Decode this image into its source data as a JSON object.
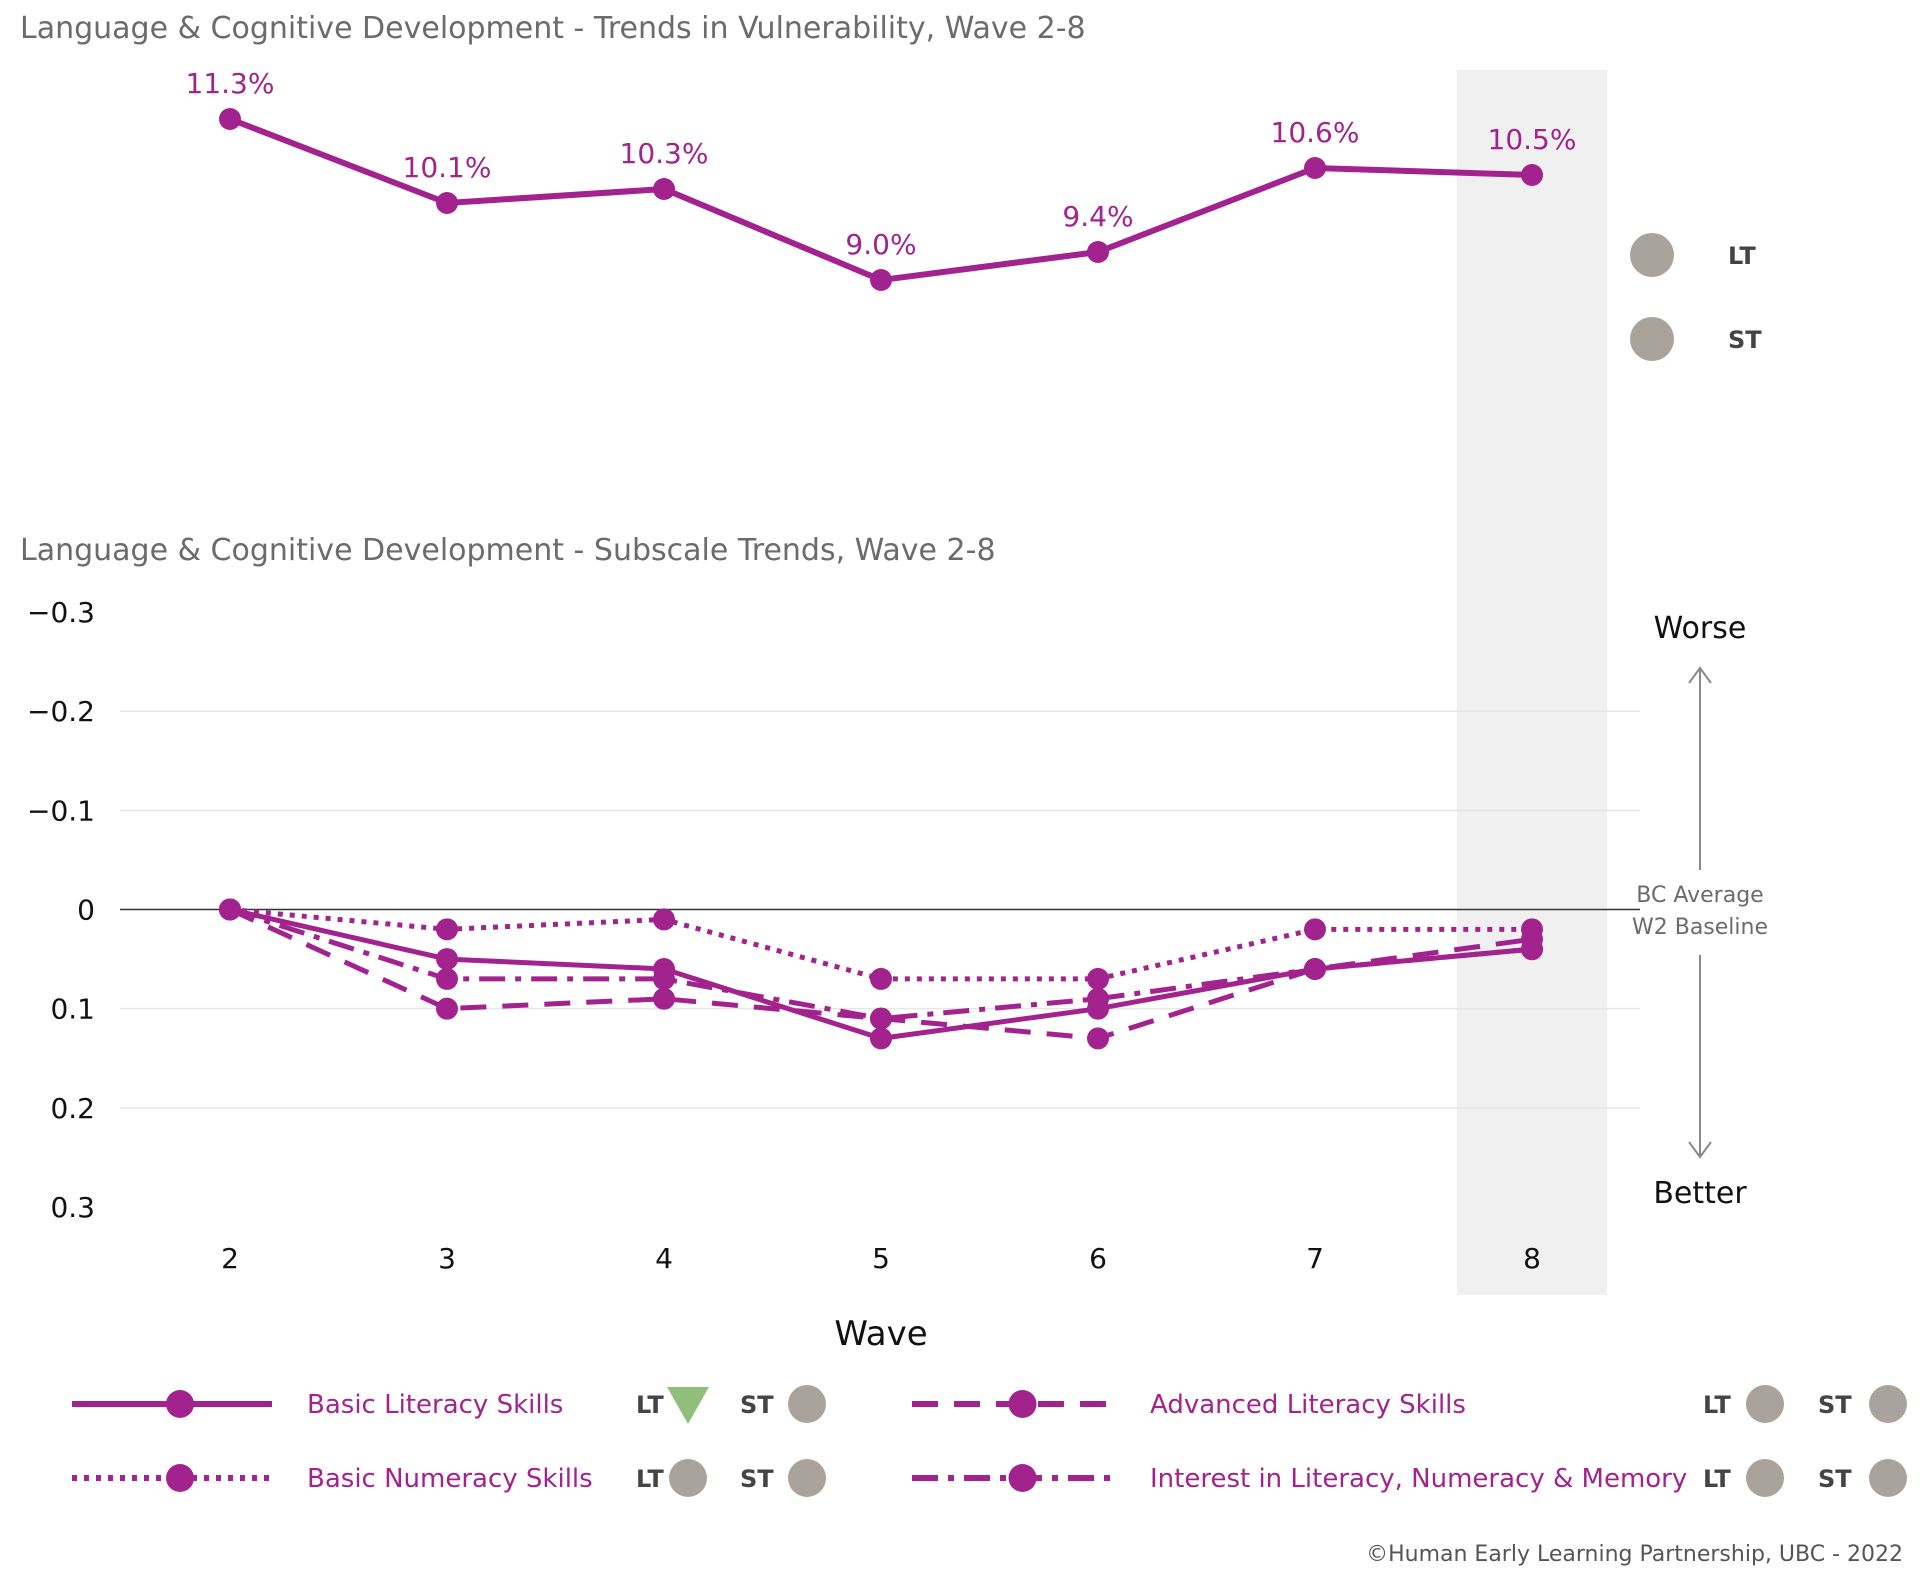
{
  "colors": {
    "series": "#a3238e",
    "highlight_band": "#f0f0f0",
    "indicator_grey": "#a9a39b",
    "indicator_green": "#8fbf7a",
    "worse": "#a81b1b",
    "better": "#8dc63f",
    "title": "#6b6b6b"
  },
  "credit": "©Human Early Learning Partnership, UBC - 2022",
  "chart_data": [
    {
      "type": "line",
      "title": "Language & Cognitive Development - Trends in Vulnerability, Wave 2-8",
      "x": [
        2,
        3,
        4,
        5,
        6,
        7,
        8
      ],
      "values": [
        11.3,
        10.1,
        10.3,
        9.0,
        9.4,
        10.6,
        10.5
      ],
      "data_labels": [
        "11.3%",
        "10.1%",
        "10.3%",
        "9.0%",
        "9.4%",
        "10.6%",
        "10.5%"
      ],
      "ylim": [
        7.0,
        12.0
      ],
      "highlight_x": 8,
      "indicators": [
        {
          "code": "LT",
          "symbol": "circle",
          "color": "#a9a39b"
        },
        {
          "code": "ST",
          "symbol": "circle",
          "color": "#a9a39b"
        }
      ]
    },
    {
      "type": "line",
      "title": "Language & Cognitive Development - Subscale Trends, Wave 2-8",
      "xlabel": "Wave",
      "x": [
        2,
        3,
        4,
        5,
        6,
        7,
        8
      ],
      "ylim": [
        -0.3,
        0.3
      ],
      "y_inverted": true,
      "y_ticks": [
        -0.3,
        -0.2,
        -0.1,
        0,
        0.1,
        0.2,
        0.3
      ],
      "y_tick_labels": [
        "−0.3",
        "−0.2",
        "−0.1",
        "0",
        "0.1",
        "0.2",
        "0.3"
      ],
      "highlight_x": 8,
      "baseline_label": [
        "BC Average",
        "W2 Baseline"
      ],
      "worse_label": "Worse",
      "better_label": "Better",
      "series": [
        {
          "name": "Basic Literacy Skills",
          "dash": "solid",
          "values": [
            0,
            0.05,
            0.06,
            0.13,
            0.1,
            0.06,
            0.04
          ],
          "indicators": [
            {
              "code": "LT",
              "symbol": "triangle-down",
              "color": "#8fbf7a"
            },
            {
              "code": "ST",
              "symbol": "circle",
              "color": "#a9a39b"
            }
          ]
        },
        {
          "name": "Basic Numeracy Skills",
          "dash": "dotted",
          "values": [
            0,
            0.02,
            0.01,
            0.07,
            0.07,
            0.02,
            0.02
          ],
          "indicators": [
            {
              "code": "LT",
              "symbol": "circle",
              "color": "#a9a39b"
            },
            {
              "code": "ST",
              "symbol": "circle",
              "color": "#a9a39b"
            }
          ]
        },
        {
          "name": "Advanced Literacy Skills",
          "dash": "dashed",
          "values": [
            0,
            0.1,
            0.09,
            0.11,
            0.13,
            0.06,
            0.03
          ],
          "indicators": [
            {
              "code": "LT",
              "symbol": "circle",
              "color": "#a9a39b"
            },
            {
              "code": "ST",
              "symbol": "circle",
              "color": "#a9a39b"
            }
          ]
        },
        {
          "name": "Interest in Literacy, Numeracy & Memory",
          "dash": "dashdot",
          "values": [
            0,
            0.07,
            0.07,
            0.11,
            0.09,
            0.06,
            0.04
          ],
          "indicators": [
            {
              "code": "LT",
              "symbol": "circle",
              "color": "#a9a39b"
            },
            {
              "code": "ST",
              "symbol": "circle",
              "color": "#a9a39b"
            }
          ]
        }
      ]
    }
  ]
}
